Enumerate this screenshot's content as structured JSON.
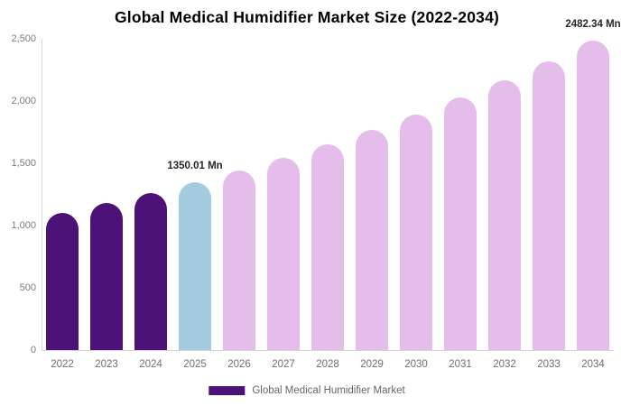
{
  "chart": {
    "title": "Global Medical Humidifier Market Size (2022-2034)",
    "legend": {
      "items": [
        {
          "label": "Global Medical Humidifier Market",
          "color": "#4D1278"
        }
      ]
    }
  },
  "chart_data": {
    "type": "bar",
    "title": "Global Medical Humidifier Market Size (2022-2034)",
    "categories": [
      "2022",
      "2023",
      "2024",
      "2025",
      "2026",
      "2027",
      "2028",
      "2029",
      "2030",
      "2031",
      "2032",
      "2033",
      "2034"
    ],
    "values": [
      1102,
      1179,
      1262,
      1350.01,
      1445,
      1546,
      1654,
      1770,
      1893,
      2026,
      2168,
      2320,
      2482.34
    ],
    "unit": "Mn",
    "bar_colors": [
      "#4D1278",
      "#4D1278",
      "#4D1278",
      "#A3CADE",
      "#E5BDEA",
      "#E5BDEA",
      "#E5BDEA",
      "#E5BDEA",
      "#E5BDEA",
      "#E5BDEA",
      "#E5BDEA",
      "#E5BDEA",
      "#E5BDEA"
    ],
    "data_labels": [
      {
        "category": "2025",
        "text": "1350.01 Mn"
      },
      {
        "category": "2034",
        "text": "2482.34 Mn"
      }
    ],
    "xlabel": "",
    "ylabel": "",
    "ylim": [
      0,
      2500
    ],
    "y_ticks": [
      0,
      500,
      1000,
      1500,
      2000,
      2500
    ],
    "y_tick_labels": [
      "0",
      "500",
      "1,000",
      "1,500",
      "2,000",
      "2,500"
    ],
    "legend": [
      "Global Medical Humidifier Market"
    ],
    "legend_position": "bottom",
    "grid": false,
    "accent_colors": {
      "historical": "#4D1278",
      "base_year": "#A3CADE",
      "forecast": "#E5BDEA"
    }
  }
}
